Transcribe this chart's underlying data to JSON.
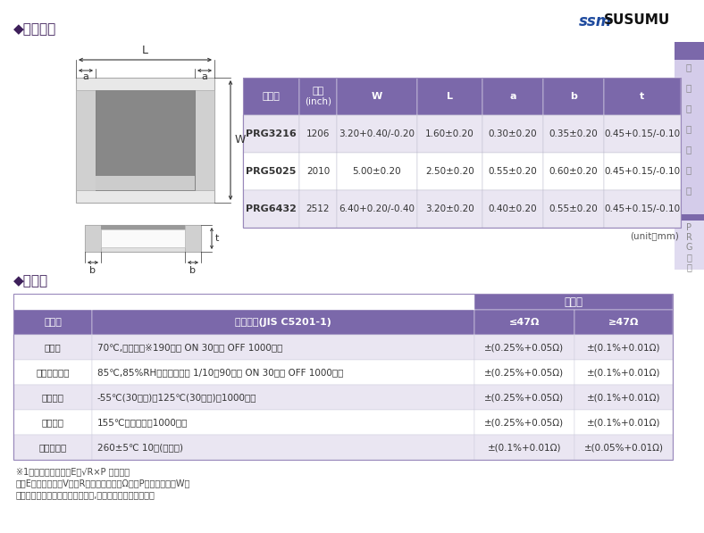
{
  "purple_header": "#7B68AA",
  "purple_light": "#C8BFE0",
  "purple_pale": "#EAE6F2",
  "purple_side_light": "#D4CCEA",
  "purple_side_pale": "#E0DBF0",
  "bg_color": "#FFFFFF",
  "size_table_headers": [
    "型　号",
    "尺寸\n(inch)",
    "W",
    "L",
    "a",
    "b",
    "t"
  ],
  "size_table_rows": [
    [
      "PRG3216",
      "1206",
      "3.20+0.40/-0.20",
      "1.60±0.20",
      "0.30±0.20",
      "0.35±0.20",
      "0.45+0.15/-0.10"
    ],
    [
      "PRG5025",
      "2010",
      "5.00±0.20",
      "2.50±0.20",
      "0.55±0.20",
      "0.60±0.20",
      "0.45+0.15/-0.10"
    ],
    [
      "PRG6432",
      "2512",
      "6.40+0.20/-0.40",
      "3.20±0.20",
      "0.40±0.20",
      "0.55±0.20",
      "0.45+0.15/-0.10"
    ]
  ],
  "perf_headers": [
    "项　目",
    "试验条件(JIS C5201-1)",
    "≤47Ω",
    "≥47Ω"
  ],
  "perf_rows": [
    [
      "耐久性",
      "70℃,额定功率※190分钟 ON 30分钟 OFF 1000小时",
      "±(0.25%+0.05Ω)",
      "±(0.1%+0.01Ω)"
    ],
    [
      "高温高湿负荷",
      "85℃,85%RH、额定功率的 1/10　90分钟 ON 30分钟 OFF 1000小时",
      "±(0.25%+0.05Ω)",
      "±(0.1%+0.01Ω)"
    ],
    [
      "温度骤变",
      "-55℃(30分钟)～125℃(30分钟)　1000循环",
      "±(0.25%+0.05Ω)",
      "±(0.1%+0.01Ω)"
    ],
    [
      "高温放置",
      "155℃　无负荷　1000小时",
      "±(0.25%+0.05Ω)",
      "±(0.1%+0.01Ω)"
    ],
    [
      "焊锡耐热性",
      "260±5℃ 10秒(回流焊)",
      "±(0.1%+0.01Ω)",
      "±(0.05%+0.01Ω)"
    ]
  ],
  "footnotes": [
    "※1　额定功率是根据E＝√R×P 来计算。",
    "　　E＝额定电压（V）、R＝额定电阻值（Ω）、P＝额定功率（W）",
    "　　额定电压超过电阻最高电压时,电阻最高电压是额定电压"
  ],
  "side_text_top": [
    "薄",
    "膜",
    "贴",
    "片",
    "电",
    "阻",
    "器"
  ],
  "side_text_bottom": [
    "P",
    "R",
    "G",
    "系",
    "列"
  ]
}
